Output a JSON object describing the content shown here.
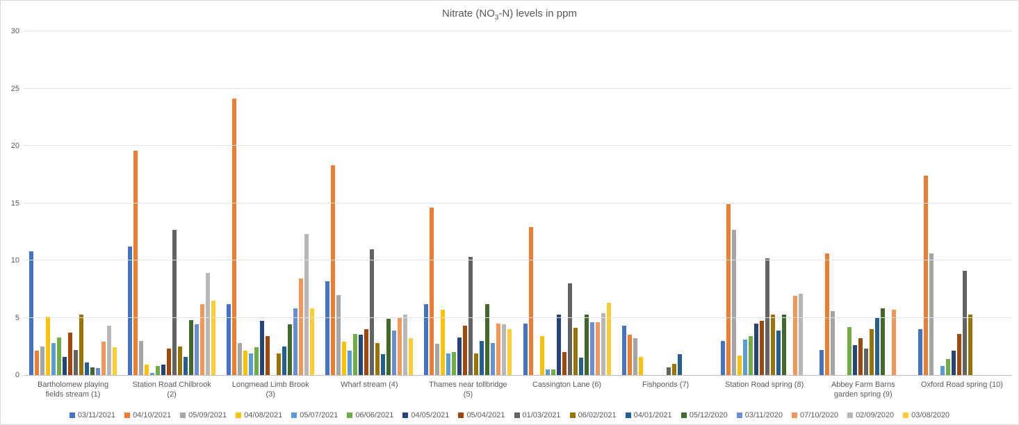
{
  "colors": {
    "background": "#FFFFFF",
    "frame": "#D9D9D9",
    "text": "#595959",
    "gridline": "#E2E2E2",
    "axis": "#BFBFBF"
  },
  "chart_data": {
    "type": "bar",
    "title": "Nitrate (NO3-N) levels in ppm",
    "title_parts": {
      "prefix": "Nitrate (NO",
      "subscript": "3",
      "suffix": "-N) levels in ppm"
    },
    "xlabel": "",
    "ylabel": "",
    "unit": "ppm",
    "ylim": [
      0,
      30
    ],
    "yticks": [
      0,
      5,
      10,
      15,
      20,
      25,
      30
    ],
    "grid": "horizontal",
    "legend_position": "bottom",
    "categories": [
      "Bartholomew playing fields stream (1)",
      "Station Road Chilbrook (2)",
      "Longmead Limb Brook (3)",
      "Wharf stream (4)",
      "Thames near tollbridge (5)",
      "Cassington Lane (6)",
      "Fishponds (7)",
      "Station Road spring (8)",
      "Abbey Farm Barns garden spring (9)",
      "Oxford Road spring (10)"
    ],
    "series": [
      {
        "name": "03/11/2021",
        "color": "#4472C4",
        "values": [
          10.8,
          11.2,
          6.2,
          8.2,
          6.2,
          4.5,
          4.3,
          3.0,
          2.2,
          4.0
        ]
      },
      {
        "name": "04/10/2021",
        "color": "#ED7D31",
        "values": [
          2.1,
          19.6,
          24.1,
          18.3,
          14.6,
          12.9,
          3.5,
          14.9,
          10.6,
          17.4
        ]
      },
      {
        "name": "05/09/2021",
        "color": "#A5A5A5",
        "values": [
          2.5,
          3.0,
          2.8,
          7.0,
          2.7,
          0,
          3.2,
          12.7,
          5.6,
          10.6
        ]
      },
      {
        "name": "04/08/2021",
        "color": "#FFC000",
        "values": [
          5.1,
          0.9,
          2.1,
          2.9,
          5.7,
          3.4,
          1.6,
          1.7,
          0,
          0
        ]
      },
      {
        "name": "05/07/2021",
        "color": "#5B9BD5",
        "values": [
          2.8,
          0.2,
          1.9,
          2.1,
          1.9,
          0.5,
          0,
          3.1,
          0,
          0.8
        ]
      },
      {
        "name": "06/06/2021",
        "color": "#70AD47",
        "values": [
          3.3,
          0.8,
          2.4,
          3.6,
          2.0,
          0.5,
          0,
          3.4,
          4.2,
          1.4
        ]
      },
      {
        "name": "04/05/2021",
        "color": "#264478",
        "values": [
          1.6,
          0.9,
          4.7,
          3.5,
          3.3,
          5.3,
          0,
          4.5,
          2.6,
          2.1
        ]
      },
      {
        "name": "05/04/2021",
        "color": "#9E480E",
        "values": [
          3.7,
          2.3,
          3.4,
          4.0,
          4.3,
          2.0,
          0,
          4.7,
          3.2,
          3.6
        ]
      },
      {
        "name": "01/03/2021",
        "color": "#636363",
        "values": [
          2.2,
          12.7,
          0,
          11.0,
          10.3,
          8.0,
          0.7,
          10.2,
          2.3,
          9.1
        ]
      },
      {
        "name": "06/02/2021",
        "color": "#997300",
        "values": [
          5.3,
          2.5,
          1.9,
          2.8,
          1.9,
          4.1,
          1.0,
          5.3,
          4.0,
          5.3
        ]
      },
      {
        "name": "04/01/2021",
        "color": "#255E91",
        "values": [
          1.1,
          1.6,
          2.5,
          1.8,
          3.0,
          1.5,
          1.8,
          3.9,
          5.0,
          0
        ]
      },
      {
        "name": "05/12/2020",
        "color": "#43682B",
        "values": [
          0.7,
          4.8,
          4.4,
          4.9,
          6.2,
          5.3,
          0,
          5.3,
          5.8,
          0
        ]
      },
      {
        "name": "03/11/2020",
        "color": "#698ED0",
        "values": [
          0.6,
          4.4,
          5.8,
          3.9,
          2.8,
          4.6,
          0,
          0,
          0,
          0
        ]
      },
      {
        "name": "07/10/2020",
        "color": "#F1975A",
        "values": [
          2.9,
          6.2,
          8.4,
          5.0,
          4.5,
          4.6,
          0,
          6.9,
          5.7,
          0
        ]
      },
      {
        "name": "02/09/2020",
        "color": "#B7B7B7",
        "values": [
          4.3,
          8.9,
          12.3,
          5.3,
          4.4,
          5.4,
          0,
          7.1,
          0,
          0
        ]
      },
      {
        "name": "03/08/2020",
        "color": "#FFCD33",
        "values": [
          2.4,
          6.5,
          5.8,
          3.2,
          4.0,
          6.3,
          0,
          0,
          0,
          0
        ]
      }
    ]
  }
}
